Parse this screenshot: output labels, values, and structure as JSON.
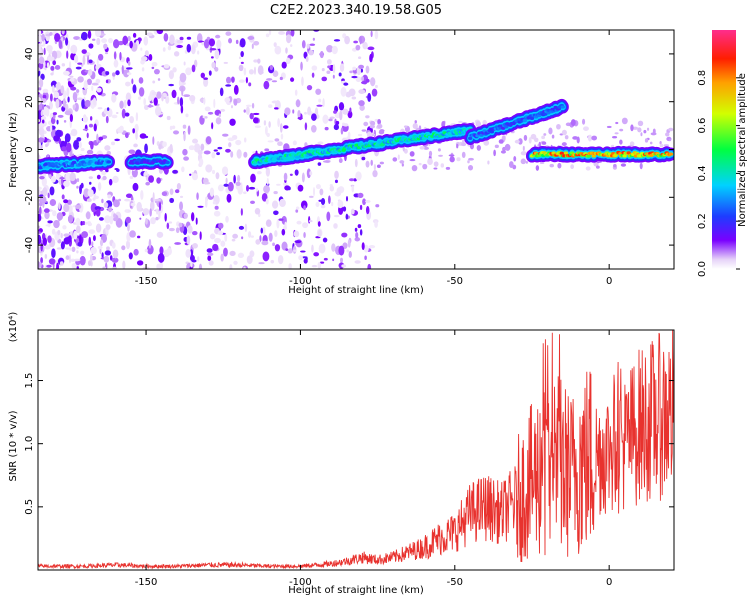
{
  "title": "C2E2.2023.340.19.58.G05",
  "colors": {
    "line": "#e8322e",
    "axis": "#000000",
    "background": "#ffffff"
  },
  "chart_data": [
    {
      "type": "heatmap",
      "xlabel": "Height of straight line (km)",
      "ylabel": "Frequency (Hz)",
      "xlim": [
        -185,
        21
      ],
      "ylim": [
        -50,
        50
      ],
      "xticks": [
        -150,
        -100,
        -50,
        0
      ],
      "xtick_labels": [
        "-150",
        "-100",
        "-50",
        "0"
      ],
      "yticks": [
        -40,
        -20,
        0,
        20,
        40
      ],
      "ytick_labels": [
        "-40",
        "-20",
        "0",
        "20",
        "40"
      ],
      "colorbar": {
        "label": "Normalized spectral amplitude",
        "range": [
          0,
          1
        ],
        "ticks": [
          0.0,
          0.2,
          0.4,
          0.6,
          0.8
        ],
        "tick_labels": [
          "0.0",
          "0.2",
          "0.4",
          "0.6",
          "0.8"
        ],
        "colormap": "rainbow"
      },
      "features": [
        {
          "name": "main-echo-segment-1",
          "x": [
            -185,
            -162
          ],
          "freq": [
            -7,
            -5
          ],
          "amplitude": 0.35
        },
        {
          "name": "main-echo-segment-2",
          "x": [
            -155,
            -143
          ],
          "freq": [
            -5,
            -5
          ],
          "amplitude": 0.25
        },
        {
          "name": "main-echo-rising",
          "x": [
            -115,
            -45
          ],
          "freq": [
            -5,
            8
          ],
          "amplitude": 0.5
        },
        {
          "name": "echo-branch",
          "x": [
            -45,
            -15
          ],
          "freq": [
            5,
            18
          ],
          "amplitude": 0.3
        },
        {
          "name": "main-echo-flat",
          "x": [
            -25,
            20
          ],
          "freq": [
            -2,
            -2
          ],
          "amplitude": 0.9
        }
      ]
    },
    {
      "type": "line",
      "xlabel": "Height of straight line (km)",
      "ylabel": "SNR (10 * v/v)",
      "multiplier": "(x10⁴)",
      "xlim": [
        -185,
        21
      ],
      "ylim": [
        0,
        1.9
      ],
      "xticks": [
        -150,
        -100,
        -50,
        0
      ],
      "xtick_labels": [
        "-150",
        "-100",
        "-50",
        "0"
      ],
      "yticks": [
        0.5,
        1.0,
        1.5
      ],
      "ytick_labels": [
        "0.5",
        "1.0",
        "1.5"
      ],
      "series": [
        {
          "name": "SNR",
          "x": [
            -185,
            -170,
            -160,
            -150,
            -140,
            -130,
            -120,
            -110,
            -100,
            -90,
            -85,
            -80,
            -75,
            -70,
            -65,
            -60,
            -55,
            -50,
            -45,
            -40,
            -35,
            -30,
            -25,
            -22,
            -20,
            -18,
            -15,
            -12,
            -10,
            -5,
            0,
            5,
            10,
            15,
            20
          ],
          "values": [
            0.03,
            0.03,
            0.04,
            0.03,
            0.03,
            0.04,
            0.04,
            0.03,
            0.03,
            0.05,
            0.07,
            0.1,
            0.08,
            0.1,
            0.14,
            0.18,
            0.25,
            0.3,
            0.45,
            0.5,
            0.45,
            0.55,
            0.7,
            0.8,
            0.75,
            0.9,
            0.8,
            0.75,
            0.85,
            0.9,
            0.95,
            1.0,
            1.15,
            1.2,
            1.25
          ]
        }
      ]
    }
  ]
}
